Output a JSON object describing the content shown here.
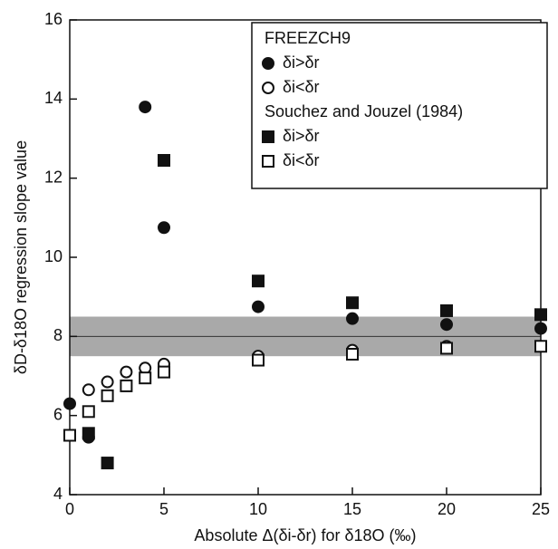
{
  "chart_data": {
    "type": "scatter",
    "xlabel": "Absolute Δ(δi-δr) for δ18O (‰)",
    "ylabel": "δD-δ18O regression slope value",
    "xlim": [
      0,
      25
    ],
    "xticks": [
      0,
      5,
      10,
      15,
      20,
      25
    ],
    "ylim": [
      4,
      16
    ],
    "yticks": [
      4,
      6,
      8,
      10,
      12,
      14,
      16
    ],
    "band": [
      7.5,
      8.5
    ],
    "reference_line": 8,
    "legend_groups": [
      "FREEZCH9",
      "Souchez and Jouzel (1984)"
    ],
    "series": [
      {
        "name": "δi>δr",
        "group": 0,
        "marker": "circle",
        "filled": true,
        "color": "#111111",
        "x": [
          0,
          1,
          4,
          5,
          10,
          15,
          20,
          25
        ],
        "values": [
          6.3,
          5.45,
          13.8,
          10.75,
          8.75,
          8.45,
          8.3,
          8.2
        ]
      },
      {
        "name": "δi<δr",
        "group": 0,
        "marker": "circle",
        "filled": false,
        "color": "#111111",
        "x": [
          1,
          2,
          3,
          4,
          5,
          10,
          15,
          20,
          25
        ],
        "values": [
          6.65,
          6.85,
          7.1,
          7.2,
          7.3,
          7.5,
          7.65,
          7.75,
          7.75
        ]
      },
      {
        "name": "δi>δr",
        "group": 1,
        "marker": "square",
        "filled": true,
        "color": "#111111",
        "x": [
          1,
          2,
          5,
          10,
          15,
          20,
          25
        ],
        "values": [
          5.55,
          4.8,
          12.45,
          9.4,
          8.85,
          8.65,
          8.55
        ]
      },
      {
        "name": "δi<δr",
        "group": 1,
        "marker": "square",
        "filled": false,
        "color": "#111111",
        "x": [
          0,
          1,
          2,
          3,
          4,
          5,
          10,
          15,
          20,
          25
        ],
        "values": [
          5.5,
          6.1,
          6.5,
          6.75,
          6.95,
          7.1,
          7.4,
          7.55,
          7.7,
          7.75
        ]
      }
    ]
  }
}
